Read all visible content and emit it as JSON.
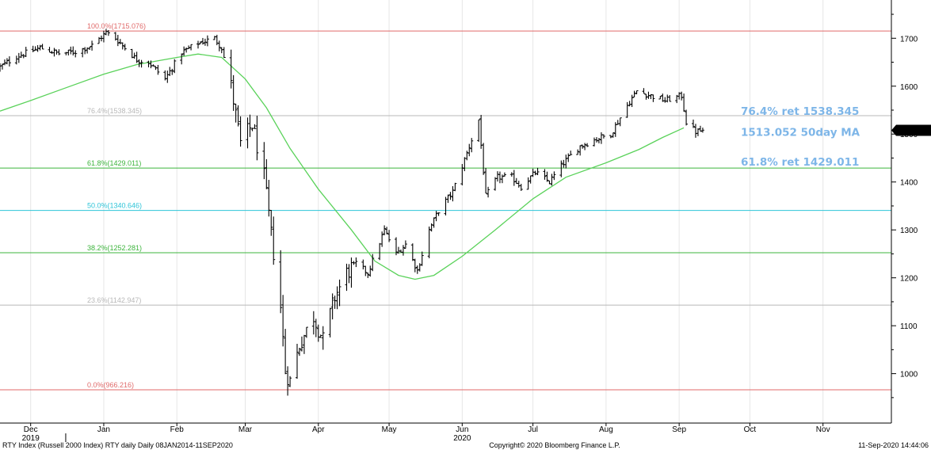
{
  "chart_data": {
    "type": "ohlc-bar",
    "ylim": [
      920,
      1760
    ],
    "y_ticks": [
      1000,
      1100,
      1200,
      1300,
      1400,
      1500,
      1600,
      1700
    ],
    "month_labels": [
      "Dec",
      "Jan",
      "Feb",
      "Mar",
      "Apr",
      "May",
      "Jun",
      "Jul",
      "Aug",
      "Sep",
      "Oct",
      "Nov"
    ],
    "month_dates": [
      "2019-12-01",
      "2020-01-01",
      "2020-02-01",
      "2020-03-01",
      "2020-04-01",
      "2020-05-01",
      "2020-06-01",
      "2020-07-01",
      "2020-08-01",
      "2020-09-01",
      "2020-10-01",
      "2020-11-01"
    ],
    "year_labels": [
      "2019",
      "2020"
    ],
    "date_range": [
      "2019-11-18",
      "2020-11-30"
    ],
    "last_price": {
      "value": 1507.751,
      "label": "1507.751"
    },
    "fib_levels": [
      {
        "label": "100.0%(1715.076)",
        "value": 1715.076,
        "color": "#e06a6a"
      },
      {
        "label": "76.4%(1538.345)",
        "value": 1538.345,
        "color": "#b8b8b8"
      },
      {
        "label": "61.8%(1429.011)",
        "value": 1429.011,
        "color": "#3cb43c"
      },
      {
        "label": "50.0%(1340.646)",
        "value": 1340.646,
        "color": "#2ec4d8"
      },
      {
        "label": "38.2%(1252.281)",
        "value": 1252.281,
        "color": "#3cb43c"
      },
      {
        "label": "23.6%(1142.947)",
        "value": 1142.947,
        "color": "#b8b8b8"
      },
      {
        "label": "0.0%(966.216)",
        "value": 966.216,
        "color": "#e06a6a"
      }
    ],
    "annotations": [
      {
        "text": "76.4% ret 1538.345",
        "value": 1538.345
      },
      {
        "text": "1513.052 50day MA",
        "value": 1513.052
      },
      {
        "text": "61.8% ret 1429.011",
        "value": 1429.011
      }
    ],
    "ma_series": {
      "name": "50day MA",
      "color": "#5ad25a",
      "points": [
        [
          "2019-11-18",
          1548
        ],
        [
          "2019-12-01",
          1570
        ],
        [
          "2019-12-15",
          1595
        ],
        [
          "2020-01-01",
          1625
        ],
        [
          "2020-01-15",
          1645
        ],
        [
          "2020-02-01",
          1660
        ],
        [
          "2020-02-10",
          1667
        ],
        [
          "2020-02-20",
          1660
        ],
        [
          "2020-03-01",
          1615
        ],
        [
          "2020-03-10",
          1555
        ],
        [
          "2020-03-20",
          1470
        ],
        [
          "2020-04-01",
          1385
        ],
        [
          "2020-04-15",
          1300
        ],
        [
          "2020-04-25",
          1235
        ],
        [
          "2020-05-05",
          1205
        ],
        [
          "2020-05-12",
          1197
        ],
        [
          "2020-05-20",
          1205
        ],
        [
          "2020-06-01",
          1245
        ],
        [
          "2020-06-15",
          1300
        ],
        [
          "2020-07-01",
          1365
        ],
        [
          "2020-07-15",
          1410
        ],
        [
          "2020-08-01",
          1440
        ],
        [
          "2020-08-15",
          1468
        ],
        [
          "2020-08-25",
          1493
        ],
        [
          "2020-09-03",
          1513.052
        ]
      ]
    },
    "price_path": [
      [
        "2019-11-18",
        1640
      ],
      [
        "2019-11-25",
        1662
      ],
      [
        "2019-12-05",
        1680
      ],
      [
        "2019-12-13",
        1668
      ],
      [
        "2019-12-20",
        1672
      ],
      [
        "2019-12-27",
        1685
      ],
      [
        "2020-01-02",
        1712
      ],
      [
        "2020-01-06",
        1700
      ],
      [
        "2020-01-10",
        1680
      ],
      [
        "2020-01-15",
        1655
      ],
      [
        "2020-01-20",
        1650
      ],
      [
        "2020-01-27",
        1615
      ],
      [
        "2020-02-03",
        1670
      ],
      [
        "2020-02-10",
        1690
      ],
      [
        "2020-02-17",
        1700
      ],
      [
        "2020-02-20",
        1680
      ],
      [
        "2020-02-24",
        1600
      ],
      [
        "2020-02-28",
        1480
      ],
      [
        "2020-03-04",
        1520
      ],
      [
        "2020-03-09",
        1410
      ],
      [
        "2020-03-12",
        1290
      ],
      [
        "2020-03-16",
        1140
      ],
      [
        "2020-03-18",
        1005
      ],
      [
        "2020-03-20",
        985
      ],
      [
        "2020-03-24",
        1060
      ],
      [
        "2020-03-30",
        1120
      ],
      [
        "2020-04-03",
        1070
      ],
      [
        "2020-04-08",
        1160
      ],
      [
        "2020-04-13",
        1210
      ],
      [
        "2020-04-17",
        1230
      ],
      [
        "2020-04-22",
        1210
      ],
      [
        "2020-04-29",
        1300
      ],
      [
        "2020-05-04",
        1250
      ],
      [
        "2020-05-08",
        1270
      ],
      [
        "2020-05-13",
        1215
      ],
      [
        "2020-05-18",
        1300
      ],
      [
        "2020-05-22",
        1340
      ],
      [
        "2020-05-28",
        1380
      ],
      [
        "2020-06-03",
        1460
      ],
      [
        "2020-06-08",
        1530
      ],
      [
        "2020-06-11",
        1370
      ],
      [
        "2020-06-16",
        1410
      ],
      [
        "2020-06-22",
        1410
      ],
      [
        "2020-06-26",
        1390
      ],
      [
        "2020-07-02",
        1420
      ],
      [
        "2020-07-08",
        1400
      ],
      [
        "2020-07-14",
        1440
      ],
      [
        "2020-07-21",
        1475
      ],
      [
        "2020-07-28",
        1490
      ],
      [
        "2020-08-03",
        1500
      ],
      [
        "2020-08-10",
        1560
      ],
      [
        "2020-08-14",
        1590
      ],
      [
        "2020-08-20",
        1580
      ],
      [
        "2020-08-26",
        1570
      ],
      [
        "2020-09-02",
        1580
      ],
      [
        "2020-09-04",
        1525
      ],
      [
        "2020-09-08",
        1505
      ],
      [
        "2020-09-11",
        1507
      ]
    ],
    "footer": {
      "left": "RTY Index (Russell 2000 Index) RTY daily  Daily 08JAN2014-11SEP2020",
      "center": "Copyright© 2020 Bloomberg Finance L.P.",
      "right": "11-Sep-2020 14:44:06"
    }
  }
}
